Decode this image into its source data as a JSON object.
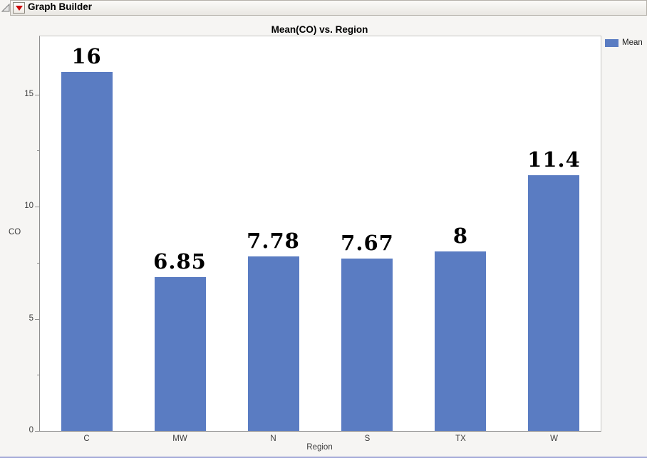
{
  "window": {
    "border_color": "#a4aad8",
    "background": "#f6f5f3"
  },
  "header": {
    "title": "Graph Builder",
    "disclosure_icon": "open-triangle-icon",
    "menu_icon": "red-triangle-icon"
  },
  "chart_data": {
    "type": "bar",
    "title": "Mean(CO) vs. Region",
    "categories": [
      "C",
      "MW",
      "N",
      "S",
      "TX",
      "W"
    ],
    "values": [
      16,
      6.85,
      7.78,
      7.67,
      8,
      11.4
    ],
    "value_labels": [
      "16",
      "6.85",
      "7.78",
      "7.67",
      "8",
      "11.4"
    ],
    "xlabel": "Region",
    "ylabel": "CO",
    "ylim": [
      0,
      17.59
    ],
    "yticks": [
      0,
      5,
      10,
      15
    ],
    "yticks_minor": [
      2.5,
      7.5,
      12.5
    ],
    "grid": false,
    "bar_color": "#5a7cc2",
    "legend": {
      "label": "Mean",
      "position": "top-right",
      "swatch_color": "#5a7cc2"
    }
  }
}
